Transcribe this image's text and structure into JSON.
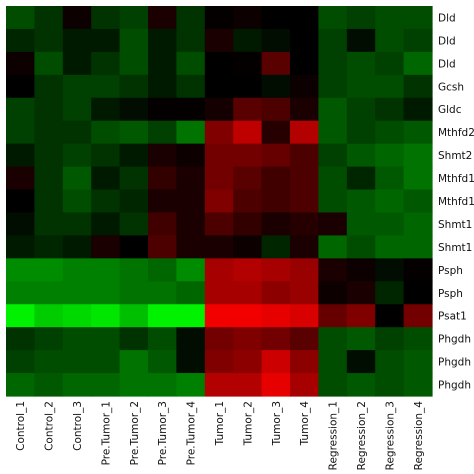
{
  "chart_data": {
    "type": "heatmap",
    "title": "",
    "xlabel": "",
    "ylabel": "",
    "legend": "none",
    "grid": false,
    "color_scale": {
      "low": "#00ff00",
      "mid": "#000000",
      "high": "#ff0000",
      "range": [
        -1,
        1
      ]
    },
    "columns": [
      "Control_1",
      "Control_2",
      "Control_3",
      "Pre.Tumor_1",
      "Pre.Tumor_2",
      "Pre.Tumor_3",
      "Pre.Tumor_4",
      "Tumor_1",
      "Tumor_2",
      "Tumor_3",
      "Tumor_4",
      "Regression_1",
      "Regression_2",
      "Regression_3",
      "Regression_4"
    ],
    "rows": [
      "Dld",
      "Dld",
      "Dld",
      "Gcsh",
      "Gldc",
      "Mthfd2",
      "Shmt2",
      "Mthfd1",
      "Mthfd1",
      "Shmt1",
      "Shmt1",
      "Psph",
      "Psph",
      "Psat1",
      "Phgdh",
      "Phgdh",
      "Phgdh"
    ],
    "values": [
      [
        -0.3,
        -0.2,
        0.05,
        -0.2,
        -0.25,
        0.1,
        -0.2,
        0.02,
        0.05,
        0.0,
        0.0,
        -0.3,
        -0.25,
        -0.3,
        -0.3
      ],
      [
        -0.15,
        -0.2,
        -0.1,
        -0.1,
        -0.3,
        -0.1,
        -0.2,
        0.1,
        -0.1,
        -0.05,
        0.0,
        -0.25,
        -0.05,
        -0.3,
        -0.25
      ],
      [
        0.05,
        -0.3,
        -0.1,
        -0.2,
        -0.3,
        -0.1,
        -0.3,
        0.0,
        0.02,
        0.35,
        0.0,
        -0.25,
        -0.3,
        -0.25,
        -0.4
      ],
      [
        0.0,
        -0.2,
        -0.25,
        -0.25,
        -0.2,
        -0.1,
        -0.2,
        0.0,
        0.0,
        -0.05,
        0.05,
        -0.25,
        -0.3,
        -0.3,
        -0.2
      ],
      [
        -0.25,
        -0.2,
        -0.25,
        -0.1,
        -0.05,
        0.02,
        0.02,
        0.08,
        0.35,
        0.3,
        0.1,
        -0.35,
        -0.25,
        -0.2,
        -0.1
      ],
      [
        -0.25,
        -0.2,
        -0.2,
        -0.3,
        -0.35,
        -0.25,
        -0.45,
        0.5,
        0.75,
        0.15,
        0.7,
        -0.35,
        -0.25,
        -0.3,
        -0.35
      ],
      [
        -0.1,
        -0.2,
        -0.25,
        -0.2,
        -0.1,
        0.1,
        0.05,
        0.45,
        0.45,
        0.4,
        0.3,
        -0.25,
        -0.35,
        -0.4,
        -0.45
      ],
      [
        0.1,
        -0.2,
        -0.35,
        -0.1,
        -0.2,
        0.2,
        0.1,
        0.45,
        0.35,
        0.25,
        0.3,
        -0.3,
        -0.15,
        -0.35,
        -0.45
      ],
      [
        0.0,
        -0.2,
        -0.3,
        -0.2,
        -0.15,
        0.1,
        0.1,
        0.5,
        0.3,
        0.25,
        0.3,
        -0.3,
        -0.35,
        -0.4,
        -0.35
      ],
      [
        -0.05,
        -0.2,
        -0.2,
        -0.1,
        -0.2,
        0.25,
        0.1,
        0.3,
        0.2,
        0.1,
        0.15,
        0.1,
        -0.35,
        -0.35,
        -0.4
      ],
      [
        -0.1,
        -0.15,
        -0.1,
        0.1,
        0.0,
        0.3,
        0.1,
        0.1,
        0.05,
        -0.15,
        0.1,
        -0.4,
        -0.3,
        -0.4,
        -0.4
      ],
      [
        -0.55,
        -0.55,
        -0.5,
        -0.5,
        -0.45,
        -0.4,
        -0.55,
        0.65,
        0.7,
        0.65,
        0.6,
        0.1,
        0.05,
        -0.05,
        0.02
      ],
      [
        -0.5,
        -0.5,
        -0.5,
        -0.5,
        -0.45,
        -0.45,
        -0.4,
        0.65,
        0.65,
        0.55,
        0.6,
        0.05,
        0.1,
        -0.15,
        0.0
      ],
      [
        -0.95,
        -0.8,
        -0.85,
        -0.9,
        -0.75,
        -0.95,
        -0.95,
        0.95,
        0.95,
        0.9,
        0.85,
        0.4,
        0.5,
        0.0,
        0.45
      ],
      [
        -0.2,
        -0.25,
        -0.3,
        -0.3,
        -0.2,
        -0.3,
        -0.05,
        0.45,
        0.5,
        0.45,
        0.35,
        -0.3,
        -0.35,
        -0.25,
        -0.3
      ],
      [
        -0.25,
        -0.3,
        -0.3,
        -0.3,
        -0.45,
        -0.35,
        -0.05,
        0.5,
        0.55,
        0.8,
        0.55,
        -0.3,
        -0.05,
        -0.3,
        -0.35
      ],
      [
        -0.4,
        -0.35,
        -0.4,
        -0.4,
        -0.45,
        -0.45,
        -0.5,
        0.7,
        0.7,
        0.9,
        0.65,
        -0.3,
        -0.35,
        -0.3,
        -0.35
      ]
    ]
  }
}
